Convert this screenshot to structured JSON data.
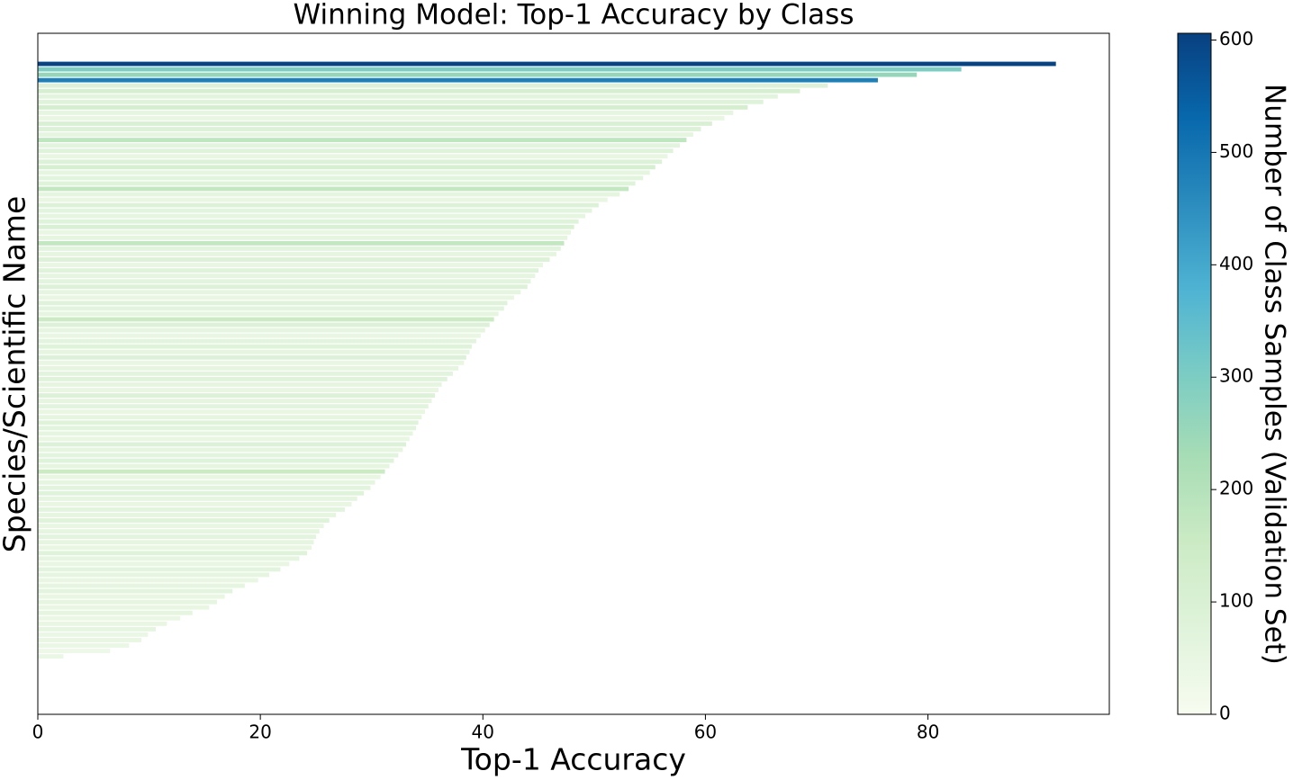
{
  "chart_data": {
    "type": "barh",
    "title": "Winning Model: Top-1 Accuracy by Class",
    "x_label": "Top-1 Accuracy",
    "y_label": "Species/Scientific Name",
    "colorbar_label": "Number of Class Samples (Validation Set)",
    "colormap": [
      "#f7fcf0",
      "#e0f3db",
      "#ccebc5",
      "#a8ddb5",
      "#7bccc4",
      "#4eb3d3",
      "#2b8cbe",
      "#0868ac",
      "#084081"
    ],
    "xlim": [
      0,
      96.3
    ],
    "xticks": [
      0,
      20,
      40,
      60,
      80
    ],
    "clim": [
      0,
      606
    ],
    "cticks": [
      0,
      100,
      200,
      300,
      400,
      500,
      600
    ],
    "categories": [
      null,
      null,
      null,
      null,
      null,
      null,
      null,
      null,
      null,
      null,
      null,
      null,
      null,
      null,
      null,
      null,
      null,
      null,
      null,
      null,
      null,
      null,
      null,
      null,
      null,
      null,
      null,
      null,
      null,
      null,
      null,
      null,
      null,
      null,
      null,
      null,
      null,
      null,
      null,
      null,
      null,
      null,
      null,
      null,
      null,
      null,
      null,
      null,
      null,
      null,
      null,
      null,
      null,
      null,
      null,
      null,
      null,
      null,
      null,
      null,
      null,
      null,
      null,
      null,
      null,
      null,
      null,
      null,
      null,
      null,
      null,
      null,
      null,
      null,
      null,
      null,
      null,
      null,
      null,
      null,
      null,
      null,
      null,
      null,
      null,
      null,
      null,
      null,
      null,
      null,
      null,
      null,
      null,
      null,
      null,
      null,
      null,
      null,
      null,
      null,
      null,
      null,
      null,
      null,
      null,
      null,
      null,
      null,
      null,
      null,
      null,
      null,
      null,
      null,
      null,
      null,
      null,
      null,
      null,
      null
    ],
    "values": [
      91.5,
      83,
      79,
      75.5,
      71,
      68.5,
      66.5,
      65.2,
      63.8,
      62.5,
      61.7,
      60.6,
      59.6,
      58.9,
      58.3,
      57.7,
      57.1,
      56.6,
      56.1,
      55.5,
      55,
      54.4,
      53.7,
      53.1,
      52.3,
      51.2,
      50.4,
      49.8,
      49.2,
      48.6,
      48.2,
      47.9,
      47.6,
      47.3,
      47,
      46.6,
      46,
      45.4,
      45,
      44.7,
      44.3,
      44,
      43.4,
      42.8,
      42.2,
      41.9,
      41.4,
      41,
      40.6,
      40.2,
      39.8,
      39.4,
      39,
      38.8,
      38.5,
      38.3,
      37.8,
      37.3,
      36.8,
      36.3,
      36,
      35.7,
      35.4,
      35.1,
      34.8,
      34.5,
      34.2,
      34,
      33.7,
      33.4,
      33.1,
      32.8,
      32.4,
      32,
      31.6,
      31.2,
      30.8,
      30.3,
      29.9,
      29.3,
      28.7,
      28.2,
      27.6,
      26.8,
      26.2,
      25.7,
      25.3,
      25,
      24.8,
      24.6,
      24.2,
      23.5,
      22.6,
      21.8,
      20.8,
      19.8,
      18.6,
      17.5,
      16.8,
      16.1,
      15.4,
      13.9,
      12.8,
      11.6,
      10.6,
      9.9,
      9.3,
      8.2,
      6.5,
      2.3,
      0,
      0,
      0,
      0,
      0,
      0,
      0,
      0,
      0,
      0
    ],
    "samples": [
      600,
      300,
      260,
      480,
      90,
      110,
      70,
      80,
      120,
      60,
      50,
      100,
      90,
      60,
      180,
      70,
      80,
      50,
      90,
      110,
      60,
      70,
      80,
      170,
      60,
      50,
      90,
      70,
      60,
      80,
      100,
      50,
      60,
      170,
      70,
      60,
      90,
      50,
      80,
      60,
      70,
      90,
      60,
      50,
      80,
      70,
      60,
      150,
      90,
      60,
      50,
      70,
      80,
      60,
      90,
      50,
      60,
      70,
      80,
      60,
      50,
      90,
      60,
      70,
      50,
      60,
      80,
      70,
      60,
      50,
      90,
      60,
      70,
      80,
      60,
      150,
      50,
      60,
      70,
      80,
      60,
      50,
      70,
      60,
      80,
      50,
      60,
      70,
      60,
      50,
      80,
      60,
      50,
      70,
      60,
      50,
      60,
      70,
      50,
      60,
      50,
      60,
      40,
      50,
      60,
      40,
      50,
      40,
      30,
      40,
      20,
      20,
      30,
      20,
      10,
      20,
      10,
      20,
      10,
      10
    ]
  }
}
